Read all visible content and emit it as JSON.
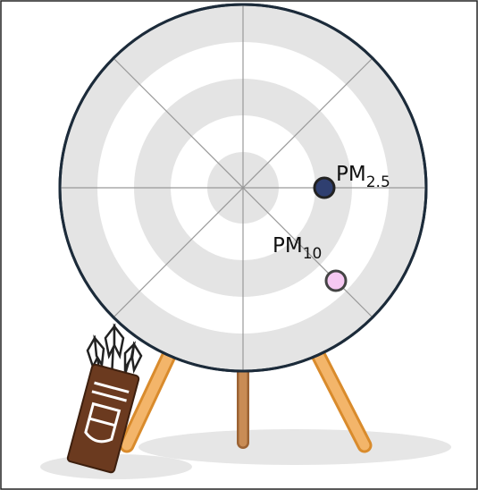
{
  "markers": [
    {
      "label": "PM",
      "subscript": "2.5"
    },
    {
      "label": "PM",
      "subscript": "10"
    }
  ]
}
